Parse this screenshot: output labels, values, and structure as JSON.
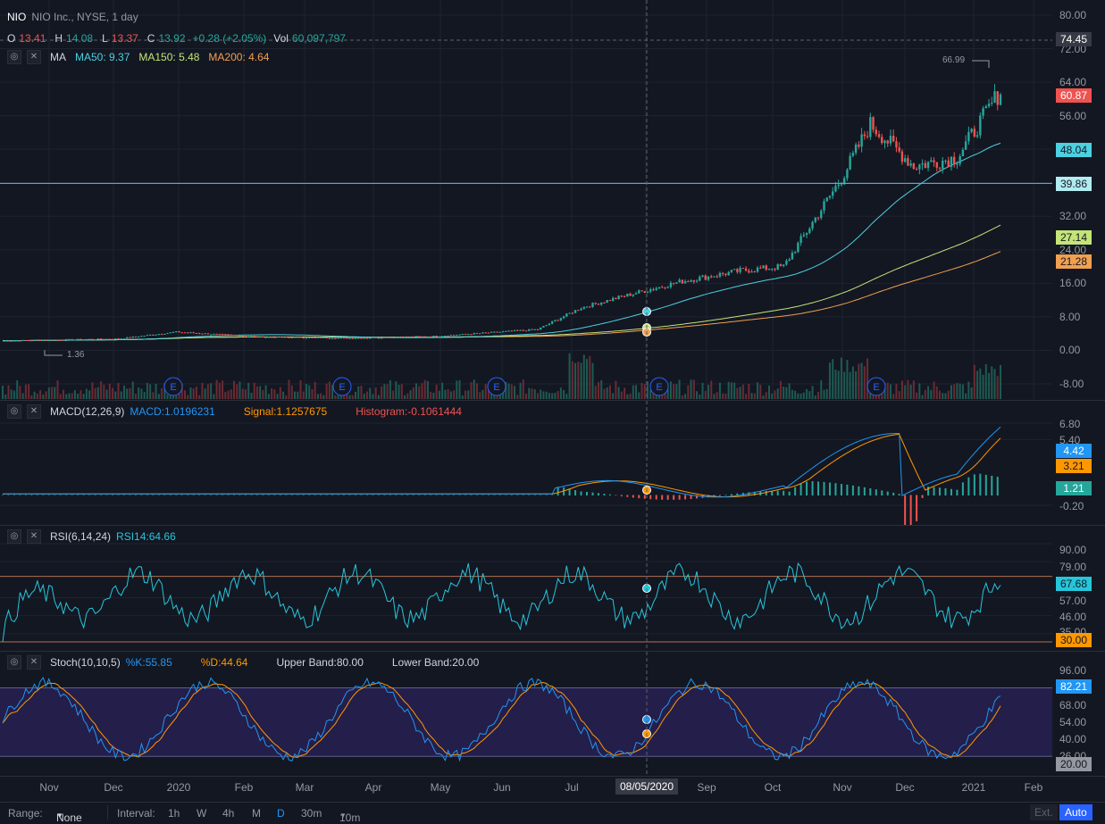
{
  "symbol": {
    "ticker": "NIO",
    "desc": "NIO Inc., NYSE, 1 day"
  },
  "ohlc": {
    "o_label": "O",
    "o": "13.41",
    "h_label": "H",
    "h": "14.08",
    "l_label": "L",
    "l": "13.37",
    "c_label": "C",
    "c": "13.92",
    "change": "+0.28 (+2.05%)",
    "vol_label": "Vol",
    "vol": "60,097,797"
  },
  "ma": {
    "label": "MA",
    "ma50": "MA50: 9.37",
    "ma150": "MA150: 5.48",
    "ma200": "MA200: 4.64"
  },
  "price_scale": [
    "80.00",
    "72.00",
    "64.00",
    "56.00",
    "48.00",
    "40.00",
    "32.00",
    "24.00",
    "16.00",
    "8.00",
    "0.00",
    "-8.00"
  ],
  "price_tags": {
    "crosshair": "74.45",
    "last": "60.87",
    "ma50": "48.04",
    "hline": "39.86",
    "ma150": "27.14",
    "ma200": "21.28"
  },
  "high_label": "66.99",
  "low_label": "1.36",
  "earnings_marker": "E",
  "macd": {
    "label": "MACD(12,26,9)",
    "macd": "MACD:1.0196231",
    "signal": "Signal:1.1257675",
    "hist": "Histogram:-0.1061444",
    "scale": [
      "6.80",
      "5.40",
      "-0.20"
    ],
    "tags": {
      "macd": "4.42",
      "signal": "3.21",
      "hist": "1.21"
    }
  },
  "rsi": {
    "label": "RSI(6,14,24)",
    "value": "RSI14:64.66",
    "scale": [
      "90.00",
      "79.00",
      "57.00",
      "46.00",
      "35.00"
    ],
    "tags": {
      "rsi": "67.68",
      "low": "30.00"
    }
  },
  "stoch": {
    "label": "Stoch(10,10,5)",
    "k": "%K:55.85",
    "d": "%D:44.64",
    "upper": "Upper Band:80.00",
    "lower": "Lower Band:20.00",
    "scale": [
      "96.00",
      "68.00",
      "54.00",
      "40.00",
      "26.00"
    ],
    "tags": {
      "k": "82.21",
      "low": "20.00"
    }
  },
  "time_axis": [
    "Nov",
    "Dec",
    "2020",
    "Feb",
    "Mar",
    "Apr",
    "May",
    "Jun",
    "Jul",
    "08/05/2020",
    "Sep",
    "Oct",
    "Nov",
    "Dec",
    "2021",
    "Feb"
  ],
  "bottom": {
    "range_label": "Range:",
    "range_value": "None",
    "interval_label": "Interval:",
    "intervals": [
      "1h",
      "W",
      "4h",
      "M",
      "D",
      "30m"
    ],
    "custom": "10m",
    "ext": "Ext.",
    "auto": "Auto"
  },
  "colors": {
    "up": "#26a69a",
    "down": "#ef5350",
    "ma50": "#4dd0e1",
    "ma150": "#c5e478",
    "ma200": "#f0a050",
    "macd": "#2196f3",
    "signal": "#ff9800",
    "rsi": "#26c6da",
    "stochK": "#2196f3",
    "stochD": "#ff9800",
    "hline": "#4fc3f7"
  }
}
